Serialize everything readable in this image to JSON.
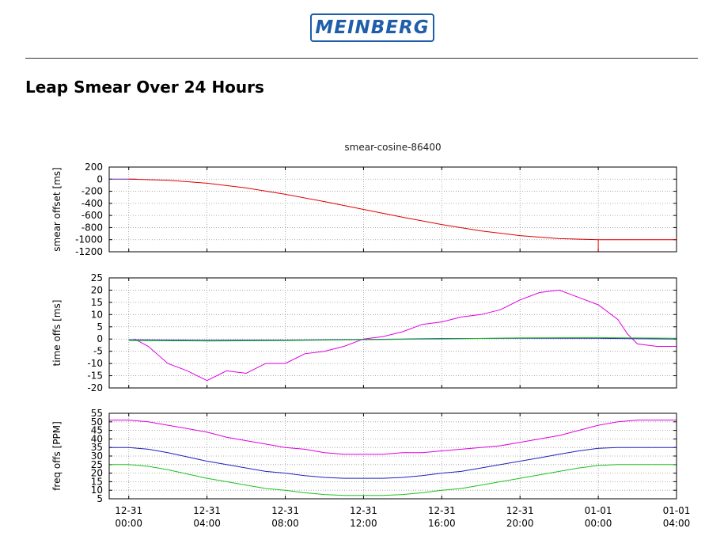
{
  "header": {
    "logo_text": "MEINBERG",
    "logo_color": "#1f5ea8",
    "page_title": "Leap Smear Over 24 Hours"
  },
  "chart_data": {
    "type": "line",
    "title": "smear-cosine-86400",
    "x_ticks": [
      {
        "hours": 0,
        "l1": "12-31",
        "l2": "00:00"
      },
      {
        "hours": 4,
        "l1": "12-31",
        "l2": "04:00"
      },
      {
        "hours": 8,
        "l1": "12-31",
        "l2": "08:00"
      },
      {
        "hours": 12,
        "l1": "12-31",
        "l2": "12:00"
      },
      {
        "hours": 16,
        "l1": "12-31",
        "l2": "16:00"
      },
      {
        "hours": 20,
        "l1": "12-31",
        "l2": "20:00"
      },
      {
        "hours": 24,
        "l1": "01-01",
        "l2": "00:00"
      },
      {
        "hours": 28,
        "l1": "01-01",
        "l2": "04:00"
      }
    ],
    "xlim_hours": [
      -1,
      28
    ],
    "grid": true,
    "panels": [
      {
        "ylabel": "smear offset [ms]",
        "ylim": [
          -1200,
          200
        ],
        "yticks": [
          200,
          0,
          -200,
          -400,
          -600,
          -800,
          -1000,
          -1200
        ],
        "series": [
          {
            "color": "#6a1a9a",
            "points": [
              [
                -1,
                0
              ],
              [
                0,
                0
              ],
              [
                0.4,
                0
              ]
            ]
          },
          {
            "color": "#e00000",
            "points": [
              [
                0,
                0
              ],
              [
                2,
                -17
              ],
              [
                4,
                -67
              ],
              [
                6,
                -146
              ],
              [
                8,
                -250
              ],
              [
                10,
                -371
              ],
              [
                12,
                -500
              ],
              [
                14,
                -629
              ],
              [
                16,
                -750
              ],
              [
                18,
                -854
              ],
              [
                20,
                -933
              ],
              [
                22,
                -983
              ],
              [
                24,
                -1000
              ],
              [
                26,
                -1000
              ],
              [
                28,
                -1000
              ]
            ]
          }
        ],
        "markers": [
          {
            "color": "#e00000",
            "x": 24,
            "y_from": -1000,
            "y_to": -1200
          }
        ]
      },
      {
        "ylabel": "time offs [ms]",
        "ylim": [
          -20,
          25
        ],
        "yticks": [
          25,
          20,
          15,
          10,
          5,
          0,
          -5,
          -10,
          -15,
          -20
        ],
        "series": [
          {
            "color": "#e000e0",
            "points": [
              [
                0.3,
                0
              ],
              [
                1,
                -3
              ],
              [
                2,
                -10
              ],
              [
                3,
                -13
              ],
              [
                4,
                -17
              ],
              [
                5,
                -13
              ],
              [
                6,
                -14
              ],
              [
                7,
                -10
              ],
              [
                8,
                -10
              ],
              [
                9,
                -6
              ],
              [
                10,
                -5
              ],
              [
                11,
                -3
              ],
              [
                12,
                0
              ],
              [
                13,
                1
              ],
              [
                14,
                3
              ],
              [
                15,
                6
              ],
              [
                16,
                7
              ],
              [
                17,
                9
              ],
              [
                18,
                10
              ],
              [
                19,
                12
              ],
              [
                20,
                16
              ],
              [
                21,
                19
              ],
              [
                22,
                20
              ],
              [
                23,
                17
              ],
              [
                24,
                14
              ],
              [
                25,
                8
              ],
              [
                25.5,
                2
              ],
              [
                26,
                -2
              ],
              [
                27,
                -3
              ],
              [
                28,
                -3
              ]
            ]
          },
          {
            "color": "#2020c0",
            "points": [
              [
                0,
                -0.3
              ],
              [
                4,
                -0.5
              ],
              [
                8,
                -0.4
              ],
              [
                12,
                -0.2
              ],
              [
                16,
                0.2
              ],
              [
                20,
                0.3
              ],
              [
                24,
                0.3
              ],
              [
                28,
                0
              ]
            ]
          },
          {
            "color": "#20c020",
            "points": [
              [
                0,
                -0.6
              ],
              [
                4,
                -0.8
              ],
              [
                8,
                -0.6
              ],
              [
                12,
                -0.3
              ],
              [
                16,
                0
              ],
              [
                20,
                0.5
              ],
              [
                24,
                0.6
              ],
              [
                28,
                0.3
              ]
            ]
          }
        ]
      },
      {
        "ylabel": "freq offs [PPM]",
        "ylim": [
          5,
          55
        ],
        "yticks": [
          55,
          50,
          45,
          40,
          35,
          30,
          25,
          20,
          15,
          10,
          5
        ],
        "series": [
          {
            "color": "#e000e0",
            "points": [
              [
                -1,
                51
              ],
              [
                0,
                51
              ],
              [
                1,
                50
              ],
              [
                2,
                48
              ],
              [
                3,
                46
              ],
              [
                4,
                44
              ],
              [
                5,
                41
              ],
              [
                6,
                39
              ],
              [
                7,
                37
              ],
              [
                8,
                35
              ],
              [
                9,
                34
              ],
              [
                10,
                32
              ],
              [
                11,
                31
              ],
              [
                12,
                31
              ],
              [
                13,
                31
              ],
              [
                14,
                32
              ],
              [
                15,
                32
              ],
              [
                16,
                33
              ],
              [
                17,
                34
              ],
              [
                18,
                35
              ],
              [
                19,
                36
              ],
              [
                20,
                38
              ],
              [
                21,
                40
              ],
              [
                22,
                42
              ],
              [
                23,
                45
              ],
              [
                24,
                48
              ],
              [
                25,
                50
              ],
              [
                26,
                51
              ],
              [
                27,
                51
              ],
              [
                28,
                51
              ]
            ]
          },
          {
            "color": "#2020c0",
            "points": [
              [
                -1,
                35
              ],
              [
                0,
                35
              ],
              [
                1,
                34
              ],
              [
                2,
                32
              ],
              [
                3,
                29.5
              ],
              [
                4,
                27
              ],
              [
                5,
                25
              ],
              [
                6,
                23
              ],
              [
                7,
                21
              ],
              [
                8,
                20
              ],
              [
                9,
                18.5
              ],
              [
                10,
                17.5
              ],
              [
                11,
                17
              ],
              [
                12,
                17
              ],
              [
                13,
                17
              ],
              [
                14,
                17.5
              ],
              [
                15,
                18.5
              ],
              [
                16,
                20
              ],
              [
                17,
                21
              ],
              [
                18,
                23
              ],
              [
                19,
                25
              ],
              [
                20,
                27
              ],
              [
                21,
                29
              ],
              [
                22,
                31
              ],
              [
                23,
                33
              ],
              [
                24,
                34.5
              ],
              [
                25,
                35
              ],
              [
                26,
                35
              ],
              [
                27,
                35
              ],
              [
                28,
                35
              ]
            ]
          },
          {
            "color": "#20c020",
            "points": [
              [
                -1,
                25
              ],
              [
                0,
                25
              ],
              [
                1,
                24
              ],
              [
                2,
                22
              ],
              [
                3,
                19.5
              ],
              [
                4,
                17
              ],
              [
                5,
                15
              ],
              [
                6,
                13
              ],
              [
                7,
                11
              ],
              [
                8,
                10
              ],
              [
                9,
                8.5
              ],
              [
                10,
                7.5
              ],
              [
                11,
                7
              ],
              [
                12,
                7
              ],
              [
                13,
                7
              ],
              [
                14,
                7.5
              ],
              [
                15,
                8.5
              ],
              [
                16,
                10
              ],
              [
                17,
                11
              ],
              [
                18,
                13
              ],
              [
                19,
                15
              ],
              [
                20,
                17
              ],
              [
                21,
                19
              ],
              [
                22,
                21
              ],
              [
                23,
                23
              ],
              [
                24,
                24.5
              ],
              [
                25,
                25
              ],
              [
                26,
                25
              ],
              [
                27,
                25
              ],
              [
                28,
                25
              ]
            ]
          }
        ]
      }
    ]
  }
}
